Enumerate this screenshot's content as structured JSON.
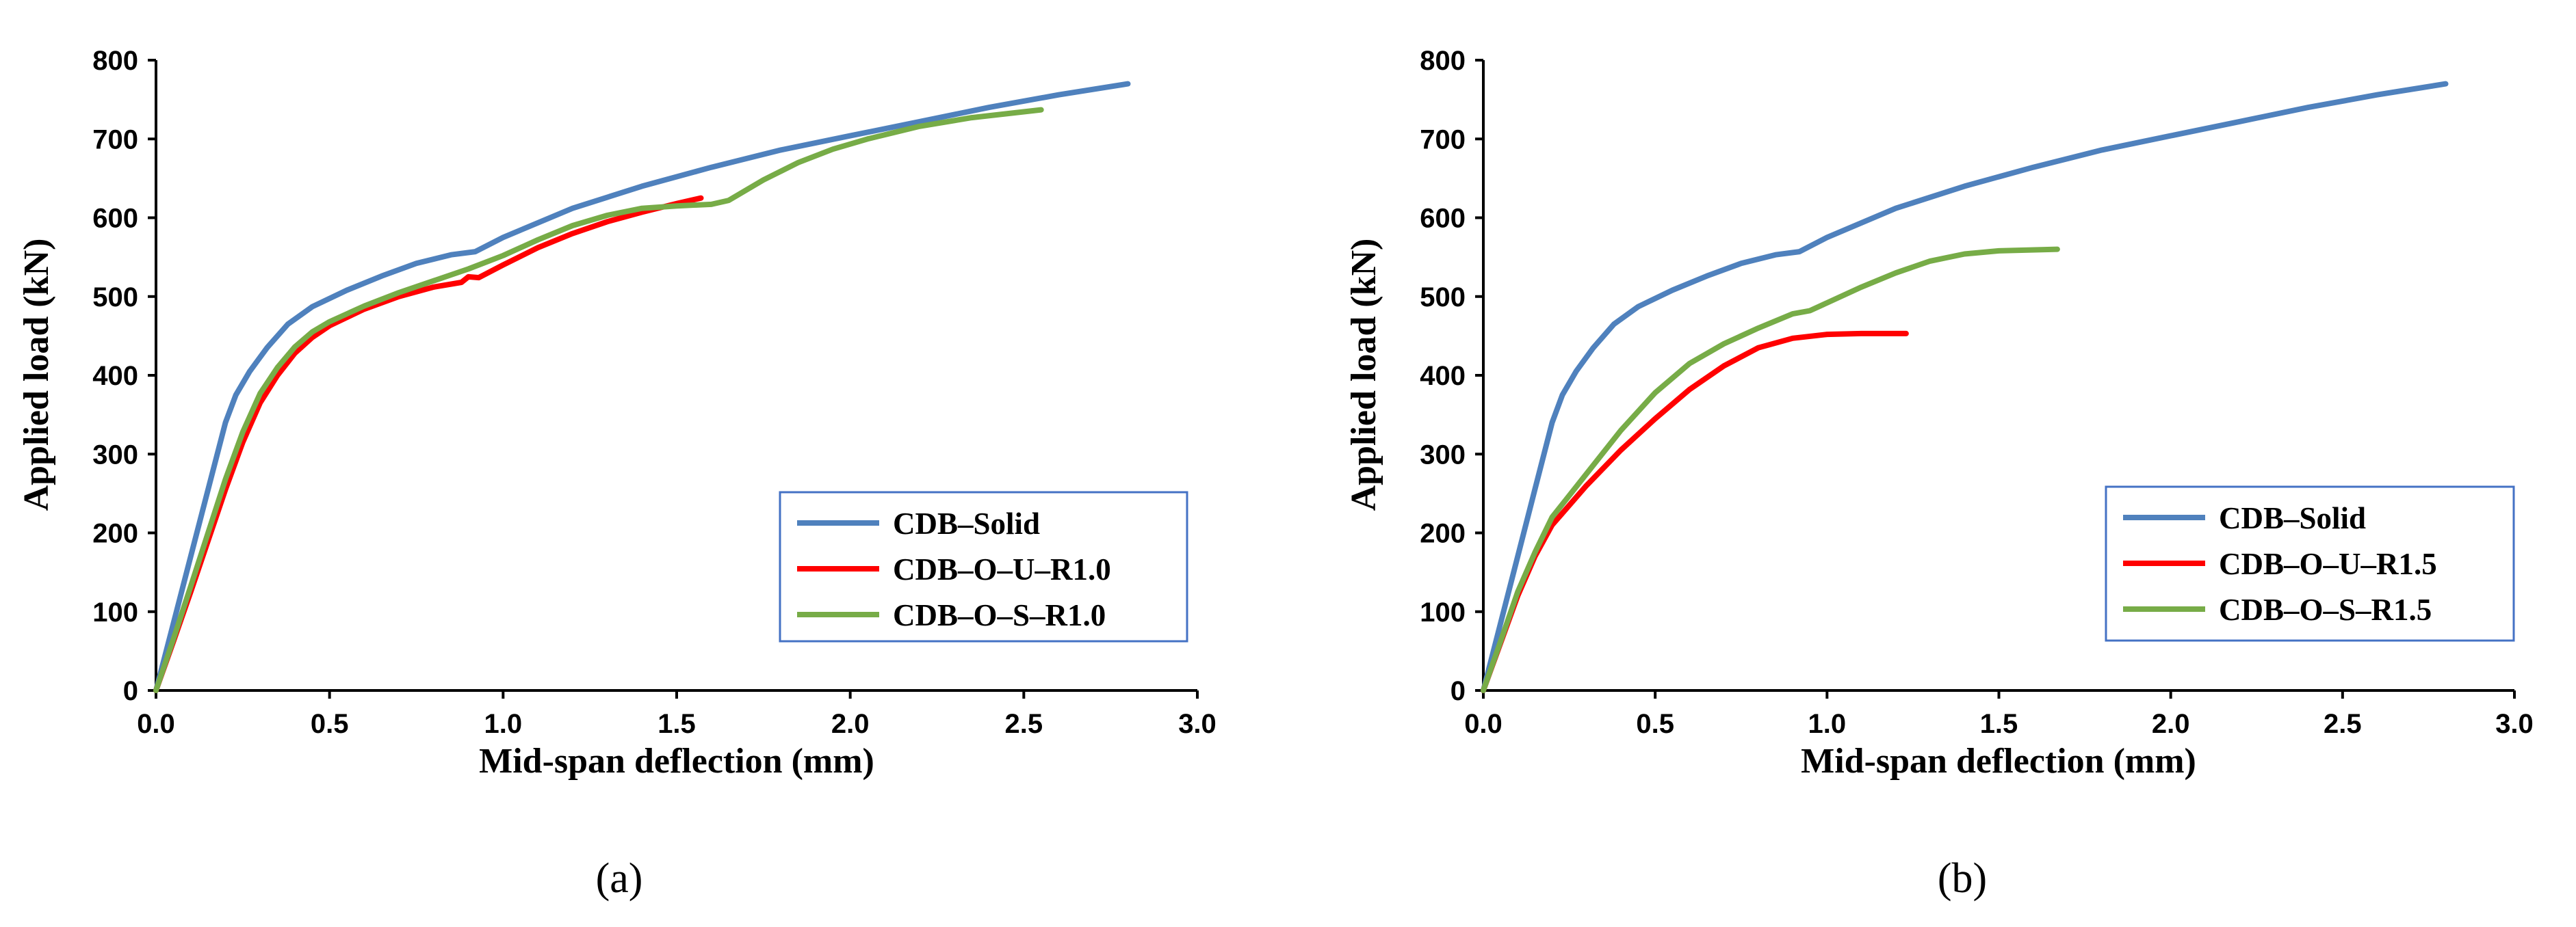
{
  "chart_data": [
    {
      "type": "line",
      "xlabel": "Mid-span  deflection  (mm)",
      "ylabel": "Applied  load  (kN)",
      "xlim": [
        0,
        3
      ],
      "ylim": [
        0,
        800
      ],
      "xticks": [
        "0.0",
        "0.5",
        "1.0",
        "1.5",
        "2.0",
        "2.5",
        "3.0"
      ],
      "yticks": [
        "0",
        "100",
        "200",
        "300",
        "400",
        "500",
        "600",
        "700",
        "800"
      ],
      "panel_label": "(a)",
      "legend_position": "bottom-right",
      "series": [
        {
          "name": "CDB–Solid",
          "color": "#4f81bd",
          "points": [
            [
              0,
              0
            ],
            [
              0.05,
              85
            ],
            [
              0.1,
              170
            ],
            [
              0.15,
              255
            ],
            [
              0.2,
              340
            ],
            [
              0.23,
              375
            ],
            [
              0.27,
              405
            ],
            [
              0.32,
              435
            ],
            [
              0.38,
              465
            ],
            [
              0.45,
              487
            ],
            [
              0.55,
              508
            ],
            [
              0.65,
              526
            ],
            [
              0.75,
              542
            ],
            [
              0.85,
              553
            ],
            [
              0.92,
              557
            ],
            [
              1.0,
              575
            ],
            [
              1.2,
              612
            ],
            [
              1.4,
              640
            ],
            [
              1.6,
              664
            ],
            [
              1.8,
              686
            ],
            [
              2.0,
              704
            ],
            [
              2.2,
              722
            ],
            [
              2.4,
              740
            ],
            [
              2.6,
              756
            ],
            [
              2.8,
              770
            ]
          ]
        },
        {
          "name": "CDB–O–U–R1.0",
          "color": "#ff0000",
          "points": [
            [
              0,
              0
            ],
            [
              0.05,
              62
            ],
            [
              0.1,
              125
            ],
            [
              0.15,
              190
            ],
            [
              0.2,
              255
            ],
            [
              0.25,
              315
            ],
            [
              0.3,
              365
            ],
            [
              0.35,
              400
            ],
            [
              0.4,
              428
            ],
            [
              0.45,
              448
            ],
            [
              0.5,
              463
            ],
            [
              0.6,
              484
            ],
            [
              0.7,
              500
            ],
            [
              0.8,
              512
            ],
            [
              0.88,
              518
            ],
            [
              0.9,
              525
            ],
            [
              0.93,
              524
            ],
            [
              1.0,
              540
            ],
            [
              1.1,
              562
            ],
            [
              1.2,
              580
            ],
            [
              1.3,
              595
            ],
            [
              1.4,
              607
            ],
            [
              1.5,
              618
            ],
            [
              1.57,
              625
            ]
          ]
        },
        {
          "name": "CDB–O–S–R1.0",
          "color": "#77ac47",
          "points": [
            [
              0,
              0
            ],
            [
              0.05,
              65
            ],
            [
              0.1,
              132
            ],
            [
              0.15,
              200
            ],
            [
              0.2,
              268
            ],
            [
              0.25,
              328
            ],
            [
              0.3,
              377
            ],
            [
              0.35,
              410
            ],
            [
              0.4,
              436
            ],
            [
              0.45,
              455
            ],
            [
              0.5,
              468
            ],
            [
              0.6,
              488
            ],
            [
              0.7,
              505
            ],
            [
              0.8,
              520
            ],
            [
              0.9,
              535
            ],
            [
              1.0,
              552
            ],
            [
              1.1,
              572
            ],
            [
              1.2,
              590
            ],
            [
              1.3,
              603
            ],
            [
              1.4,
              612
            ],
            [
              1.5,
              615
            ],
            [
              1.6,
              617
            ],
            [
              1.65,
              622
            ],
            [
              1.75,
              648
            ],
            [
              1.85,
              670
            ],
            [
              1.95,
              687
            ],
            [
              2.05,
              700
            ],
            [
              2.2,
              716
            ],
            [
              2.35,
              727
            ],
            [
              2.55,
              737
            ]
          ]
        }
      ]
    },
    {
      "type": "line",
      "xlabel": "Mid-span  deflection  (mm)",
      "ylabel": "Applied  load  (kN)",
      "xlim": [
        0,
        3
      ],
      "ylim": [
        0,
        800
      ],
      "xticks": [
        "0.0",
        "0.5",
        "1.0",
        "1.5",
        "2.0",
        "2.5",
        "3.0"
      ],
      "yticks": [
        "0",
        "100",
        "200",
        "300",
        "400",
        "500",
        "600",
        "700",
        "800"
      ],
      "panel_label": "(b)",
      "legend_position": "bottom-right",
      "series": [
        {
          "name": "CDB–Solid",
          "color": "#4f81bd",
          "points": [
            [
              0,
              0
            ],
            [
              0.05,
              85
            ],
            [
              0.1,
              170
            ],
            [
              0.15,
              255
            ],
            [
              0.2,
              340
            ],
            [
              0.23,
              375
            ],
            [
              0.27,
              405
            ],
            [
              0.32,
              435
            ],
            [
              0.38,
              465
            ],
            [
              0.45,
              487
            ],
            [
              0.55,
              508
            ],
            [
              0.65,
              526
            ],
            [
              0.75,
              542
            ],
            [
              0.85,
              553
            ],
            [
              0.92,
              557
            ],
            [
              1.0,
              575
            ],
            [
              1.2,
              612
            ],
            [
              1.4,
              640
            ],
            [
              1.6,
              664
            ],
            [
              1.8,
              686
            ],
            [
              2.0,
              704
            ],
            [
              2.2,
              722
            ],
            [
              2.4,
              740
            ],
            [
              2.6,
              756
            ],
            [
              2.8,
              770
            ]
          ]
        },
        {
          "name": "CDB–O–U–R1.5",
          "color": "#ff0000",
          "points": [
            [
              0,
              0
            ],
            [
              0.05,
              60
            ],
            [
              0.1,
              120
            ],
            [
              0.15,
              170
            ],
            [
              0.2,
              210
            ],
            [
              0.3,
              260
            ],
            [
              0.4,
              305
            ],
            [
              0.5,
              345
            ],
            [
              0.6,
              382
            ],
            [
              0.7,
              412
            ],
            [
              0.8,
              435
            ],
            [
              0.9,
              447
            ],
            [
              1.0,
              452
            ],
            [
              1.1,
              453
            ],
            [
              1.23,
              453
            ]
          ]
        },
        {
          "name": "CDB–O–S–R1.5",
          "color": "#77ac47",
          "points": [
            [
              0,
              0
            ],
            [
              0.05,
              62
            ],
            [
              0.1,
              125
            ],
            [
              0.15,
              175
            ],
            [
              0.2,
              220
            ],
            [
              0.3,
              275
            ],
            [
              0.4,
              330
            ],
            [
              0.5,
              378
            ],
            [
              0.6,
              415
            ],
            [
              0.7,
              440
            ],
            [
              0.8,
              460
            ],
            [
              0.9,
              478
            ],
            [
              0.95,
              482
            ],
            [
              1.0,
              492
            ],
            [
              1.1,
              512
            ],
            [
              1.2,
              530
            ],
            [
              1.3,
              545
            ],
            [
              1.4,
              554
            ],
            [
              1.5,
              558
            ],
            [
              1.67,
              560
            ]
          ]
        }
      ]
    }
  ]
}
